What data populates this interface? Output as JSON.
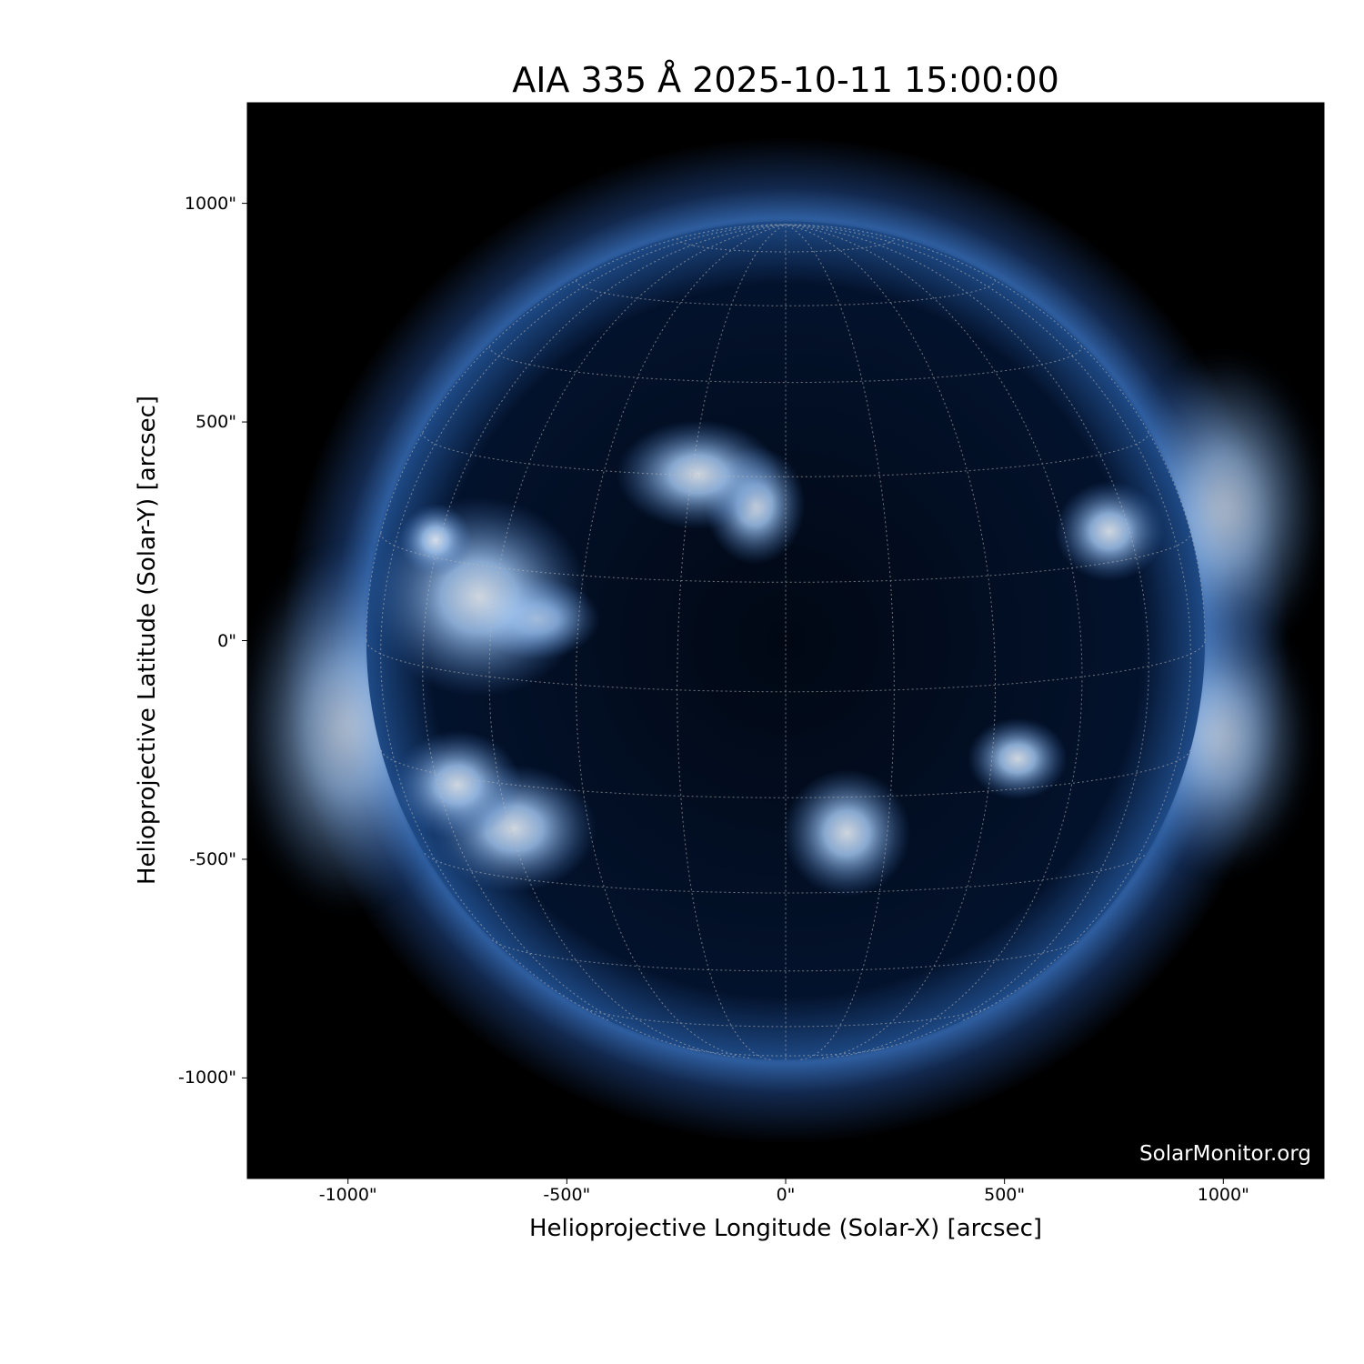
{
  "chart_data": {
    "type": "heatmap",
    "title": "AIA 335 Å 2025-10-11 15:00:00",
    "xlabel": "Helioprojective Longitude (Solar-X) [arcsec]",
    "ylabel": "Helioprojective Latitude (Solar-Y) [arcsec]",
    "xlim": [
      -1230,
      1230
    ],
    "ylim": [
      -1230,
      1230
    ],
    "xticks": [
      {
        "v": -1000,
        "label": "-1000\""
      },
      {
        "v": -500,
        "label": "-500\""
      },
      {
        "v": 0,
        "label": "0\""
      },
      {
        "v": 500,
        "label": "500\""
      },
      {
        "v": 1000,
        "label": "1000\""
      }
    ],
    "yticks": [
      {
        "v": 1000,
        "label": "1000\""
      },
      {
        "v": 500,
        "label": "500\""
      },
      {
        "v": 0,
        "label": "0\""
      },
      {
        "v": -500,
        "label": "-500\""
      },
      {
        "v": -1000,
        "label": "-1000\""
      }
    ],
    "solar_radius_arcsec": 958,
    "grid_spacing_deg": 15,
    "colormap": "sdoaia335 (black-blue-white)",
    "colors": {
      "background": "#000000",
      "disk": "#03112a",
      "corona": "#2e5d9e",
      "bright": "#e8f2ff"
    },
    "watermark": "SolarMonitor.org"
  }
}
